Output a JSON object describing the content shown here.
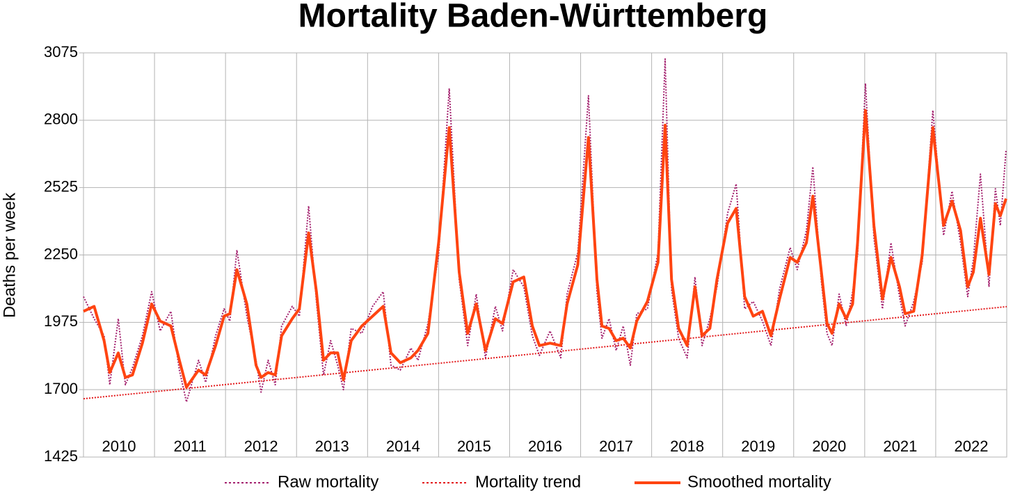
{
  "chart_data": {
    "type": "line",
    "title": "Mortality Baden-Württemberg",
    "y_label": "Deaths per week",
    "categories": [
      "2010",
      "2011",
      "2012",
      "2013",
      "2014",
      "2015",
      "2016",
      "2017",
      "2018",
      "2019",
      "2020",
      "2021",
      "2022"
    ],
    "xlim": [
      2010,
      2023
    ],
    "ylim": [
      1425,
      3075
    ],
    "yticks": [
      1425,
      1700,
      1975,
      2250,
      2525,
      2800,
      3075
    ],
    "grid": true,
    "legend": "bottom",
    "x": [
      2010.0,
      2010.15,
      2010.29,
      2010.37,
      2010.49,
      2010.59,
      2010.69,
      2010.83,
      2010.96,
      2011.08,
      2011.23,
      2011.35,
      2011.45,
      2011.62,
      2011.72,
      2011.86,
      2011.98,
      2012.06,
      2012.16,
      2012.3,
      2012.43,
      2012.5,
      2012.6,
      2012.7,
      2012.79,
      2012.94,
      2013.04,
      2013.17,
      2013.28,
      2013.38,
      2013.48,
      2013.58,
      2013.66,
      2013.77,
      2013.92,
      2014.07,
      2014.22,
      2014.33,
      2014.46,
      2014.61,
      2014.71,
      2014.85,
      2015.0,
      2015.15,
      2015.29,
      2015.41,
      2015.53,
      2015.66,
      2015.8,
      2015.9,
      2016.05,
      2016.2,
      2016.32,
      2016.42,
      2016.57,
      2016.72,
      2016.81,
      2016.96,
      2017.11,
      2017.23,
      2017.3,
      2017.4,
      2017.5,
      2017.6,
      2017.7,
      2017.79,
      2017.94,
      2018.09,
      2018.19,
      2018.28,
      2018.38,
      2018.5,
      2018.61,
      2018.71,
      2018.82,
      2018.92,
      2019.07,
      2019.19,
      2019.31,
      2019.43,
      2019.56,
      2019.68,
      2019.8,
      2019.95,
      2020.05,
      2020.18,
      2020.27,
      2020.39,
      2020.47,
      2020.54,
      2020.64,
      2020.74,
      2020.83,
      2020.9,
      2021.01,
      2021.13,
      2021.25,
      2021.37,
      2021.49,
      2021.57,
      2021.69,
      2021.81,
      2021.96,
      2022.11,
      2022.23,
      2022.35,
      2022.45,
      2022.53,
      2022.63,
      2022.75,
      2022.84,
      2022.91,
      2022.99
    ],
    "series": [
      {
        "name": "Raw mortality",
        "color": "#a3206e",
        "style": "dotted",
        "width": 2,
        "values": [
          2080,
          1990,
          1920,
          1720,
          1990,
          1720,
          1790,
          1920,
          2100,
          1940,
          2020,
          1780,
          1650,
          1820,
          1730,
          1920,
          2030,
          1980,
          2270,
          2000,
          1820,
          1690,
          1820,
          1720,
          1960,
          2040,
          2000,
          2450,
          2060,
          1760,
          1900,
          1800,
          1700,
          1950,
          1930,
          2040,
          2100,
          1800,
          1780,
          1870,
          1820,
          1970,
          2250,
          2930,
          2150,
          1880,
          2090,
          1830,
          2040,
          1940,
          2190,
          2120,
          1920,
          1840,
          1940,
          1830,
          2090,
          2260,
          2900,
          2100,
          1910,
          1990,
          1860,
          1960,
          1800,
          2010,
          2030,
          2260,
          3050,
          2110,
          1910,
          1830,
          2160,
          1880,
          1990,
          2120,
          2420,
          2540,
          2030,
          2060,
          1980,
          1880,
          2110,
          2280,
          2190,
          2350,
          2610,
          2140,
          1930,
          1880,
          2090,
          1960,
          2100,
          2250,
          2950,
          2320,
          2030,
          2300,
          2080,
          1960,
          2060,
          2220,
          2840,
          2330,
          2510,
          2300,
          2080,
          2230,
          2580,
          2120,
          2520,
          2370,
          2680
        ]
      },
      {
        "name": "Mortality trend",
        "color": "#e31a1c",
        "style": "dotted",
        "width": 2,
        "x": [
          2010,
          2023
        ],
        "values": [
          1663,
          2039
        ]
      },
      {
        "name": "Smoothed mortality",
        "color": "#ff4411",
        "style": "solid",
        "width": 4,
        "values": [
          2020,
          2040,
          1900,
          1770,
          1850,
          1750,
          1760,
          1890,
          2050,
          1980,
          1960,
          1820,
          1710,
          1780,
          1760,
          1880,
          2000,
          2010,
          2190,
          2050,
          1800,
          1750,
          1770,
          1760,
          1920,
          1990,
          2030,
          2340,
          2100,
          1820,
          1850,
          1850,
          1740,
          1900,
          1960,
          2000,
          2040,
          1850,
          1810,
          1830,
          1860,
          1930,
          2300,
          2770,
          2180,
          1930,
          2050,
          1860,
          1990,
          1970,
          2140,
          2160,
          1960,
          1880,
          1890,
          1880,
          2050,
          2210,
          2730,
          2150,
          1960,
          1950,
          1900,
          1910,
          1870,
          1980,
          2060,
          2220,
          2780,
          2150,
          1950,
          1880,
          2120,
          1920,
          1950,
          2150,
          2380,
          2440,
          2080,
          2000,
          2020,
          1920,
          2070,
          2240,
          2220,
          2300,
          2490,
          2180,
          1970,
          1930,
          2050,
          1990,
          2050,
          2300,
          2840,
          2370,
          2070,
          2240,
          2120,
          2010,
          2020,
          2250,
          2770,
          2370,
          2470,
          2350,
          2120,
          2180,
          2400,
          2170,
          2460,
          2410,
          2480
        ]
      }
    ]
  }
}
